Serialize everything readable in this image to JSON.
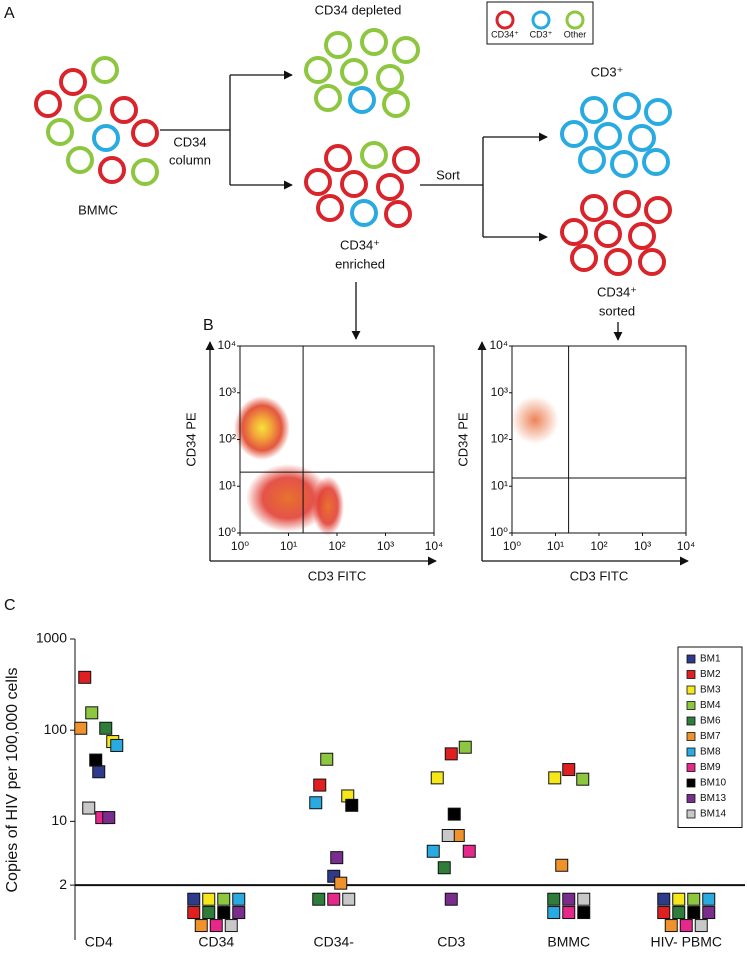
{
  "panel_labels": {
    "a": "A",
    "b": "B",
    "c": "C"
  },
  "diagram": {
    "legend": [
      "CD34⁺",
      "CD3⁺",
      "Other"
    ],
    "labels": {
      "depleted": "CD34 depleted",
      "bmmc": "BMMC",
      "column": [
        "CD34",
        "column"
      ],
      "enriched": [
        "CD34⁺",
        "enriched"
      ],
      "sort": "Sort",
      "cd3": "CD3⁺",
      "sorted": [
        "CD34⁺",
        "sorted"
      ]
    }
  },
  "flow_plots": [
    {
      "type": "density",
      "xlabel": "CD3 FITC",
      "ylabel": "CD34 PE",
      "log": true,
      "xlim": [
        1,
        10000
      ],
      "ylim": [
        1,
        10000
      ],
      "xticks": [
        {
          "value": 1,
          "label": "10⁰"
        },
        {
          "value": 10,
          "label": "10¹"
        },
        {
          "value": 100,
          "label": "10²"
        },
        {
          "value": 1000,
          "label": "10³"
        },
        {
          "value": 10000,
          "label": "10⁴"
        }
      ],
      "yticks": [
        {
          "value": 1,
          "label": "10⁰"
        },
        {
          "value": 10,
          "label": "10¹"
        },
        {
          "value": 100,
          "label": "10²"
        },
        {
          "value": 1000,
          "label": "10³"
        },
        {
          "value": 10000,
          "label": "10⁴"
        }
      ],
      "gates": {
        "x": 20,
        "y": 20
      }
    },
    {
      "type": "density",
      "xlabel": "CD3 FITC",
      "ylabel": "CD34 PE",
      "log": true,
      "xlim": [
        1,
        10000
      ],
      "ylim": [
        1,
        10000
      ],
      "xticks": [
        {
          "value": 1,
          "label": "10⁰"
        },
        {
          "value": 10,
          "label": "10¹"
        },
        {
          "value": 100,
          "label": "10²"
        },
        {
          "value": 1000,
          "label": "10³"
        },
        {
          "value": 10000,
          "label": "10⁴"
        }
      ],
      "yticks": [
        {
          "value": 1,
          "label": "10⁰"
        },
        {
          "value": 10,
          "label": "10¹"
        },
        {
          "value": 100,
          "label": "10²"
        },
        {
          "value": 1000,
          "label": "10³"
        },
        {
          "value": 10000,
          "label": "10⁴"
        }
      ],
      "gates": {
        "x": 20,
        "y": 15
      }
    }
  ],
  "chart_data": {
    "type": "strip",
    "ylabel": "Copies of HIV per 100,000 cells",
    "log": true,
    "ylim": [
      0.5,
      1000
    ],
    "yticks": [
      2,
      10,
      100,
      1000
    ],
    "threshold": 2,
    "legend": "top-right",
    "categories": [
      "CD4",
      "CD34",
      "CD34-",
      "CD3",
      "BMMC",
      "HIV- PBMC"
    ],
    "series": [
      {
        "name": "BM1",
        "color": "#2e3a8c",
        "values": [
          35,
          1.4,
          2.5,
          null,
          null,
          1.4
        ]
      },
      {
        "name": "BM2",
        "color": "#e02020",
        "values": [
          380,
          1.0,
          25,
          55,
          37,
          1.0
        ]
      },
      {
        "name": "BM3",
        "color": "#f5e71a",
        "values": [
          75,
          1.4,
          19,
          30,
          30,
          1.4
        ]
      },
      {
        "name": "BM4",
        "color": "#8dc63f",
        "values": [
          155,
          1.4,
          48,
          65,
          29,
          1.4
        ]
      },
      {
        "name": "BM6",
        "color": "#2e7d3a",
        "values": [
          105,
          1.0,
          1.4,
          3.1,
          1.4,
          1.0
        ]
      },
      {
        "name": "BM7",
        "color": "#f0922b",
        "values": [
          105,
          0.72,
          2.1,
          7,
          3.3,
          0.72
        ]
      },
      {
        "name": "BM8",
        "color": "#29abe2",
        "values": [
          68,
          1.4,
          16,
          4.7,
          1.0,
          1.4
        ]
      },
      {
        "name": "BM9",
        "color": "#e6288a",
        "values": [
          11,
          0.72,
          1.4,
          4.7,
          1.0,
          0.72
        ]
      },
      {
        "name": "BM10",
        "color": "#000000",
        "values": [
          47,
          1.0,
          15,
          12,
          1.0,
          1.0
        ]
      },
      {
        "name": "BM13",
        "color": "#7b2d8e",
        "values": [
          11,
          1.0,
          4,
          1.4,
          1.4,
          1.0
        ]
      },
      {
        "name": "BM14",
        "color": "#c8c8c8",
        "values": [
          14,
          0.72,
          1.4,
          7,
          1.4,
          0.72
        ]
      }
    ]
  }
}
